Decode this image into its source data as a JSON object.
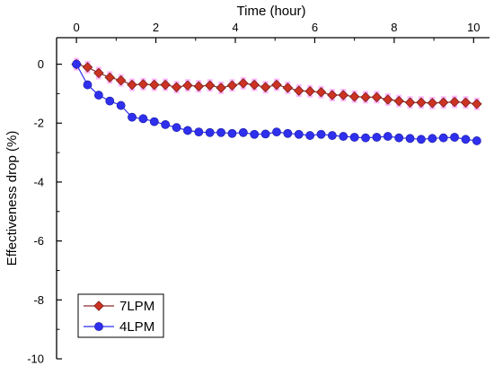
{
  "chart_data": {
    "type": "line",
    "title": "",
    "xlabel": "Time (hour)",
    "ylabel": "Effectiveness drop (%)",
    "xlim": [
      -0.5,
      10.4
    ],
    "ylim": [
      -10,
      0.9
    ],
    "xticks": [
      0,
      2,
      4,
      6,
      8,
      10
    ],
    "yticks": [
      0,
      -2,
      -4,
      -6,
      -8,
      -10
    ],
    "x_axis_position": "top",
    "grid": false,
    "legend_position": "bottom-left",
    "series": [
      {
        "name": "7LPM",
        "color": "#cc3322",
        "line_color": "#8b2a2a",
        "marker": "diamond",
        "error_color": "#ff66ff",
        "x": [
          0,
          0.28,
          0.56,
          0.84,
          1.12,
          1.4,
          1.68,
          1.96,
          2.24,
          2.52,
          2.8,
          3.08,
          3.36,
          3.64,
          3.92,
          4.2,
          4.48,
          4.76,
          5.04,
          5.32,
          5.6,
          5.88,
          6.16,
          6.44,
          6.72,
          7.0,
          7.28,
          7.56,
          7.84,
          8.12,
          8.4,
          8.68,
          8.96,
          9.24,
          9.52,
          9.8,
          10.08
        ],
        "y": [
          0,
          -0.1,
          -0.3,
          -0.45,
          -0.55,
          -0.7,
          -0.68,
          -0.7,
          -0.7,
          -0.78,
          -0.72,
          -0.75,
          -0.72,
          -0.8,
          -0.72,
          -0.65,
          -0.7,
          -0.78,
          -0.7,
          -0.8,
          -0.9,
          -0.92,
          -0.95,
          -1.05,
          -1.05,
          -1.1,
          -1.12,
          -1.12,
          -1.2,
          -1.25,
          -1.3,
          -1.3,
          -1.32,
          -1.3,
          -1.28,
          -1.3,
          -1.35
        ]
      },
      {
        "name": "4LPM",
        "color": "#2f2fee",
        "line_color": "#2f2fee",
        "marker": "circle",
        "x": [
          0,
          0.28,
          0.56,
          0.84,
          1.12,
          1.4,
          1.68,
          1.96,
          2.24,
          2.52,
          2.8,
          3.08,
          3.36,
          3.64,
          3.92,
          4.2,
          4.48,
          4.76,
          5.04,
          5.32,
          5.6,
          5.88,
          6.16,
          6.44,
          6.72,
          7.0,
          7.28,
          7.56,
          7.84,
          8.12,
          8.4,
          8.68,
          8.96,
          9.24,
          9.52,
          9.8,
          10.08
        ],
        "y": [
          0,
          -0.7,
          -1.05,
          -1.25,
          -1.4,
          -1.8,
          -1.85,
          -1.95,
          -2.05,
          -2.15,
          -2.25,
          -2.3,
          -2.32,
          -2.32,
          -2.35,
          -2.32,
          -2.38,
          -2.37,
          -2.3,
          -2.35,
          -2.38,
          -2.42,
          -2.38,
          -2.42,
          -2.45,
          -2.48,
          -2.5,
          -2.48,
          -2.45,
          -2.5,
          -2.52,
          -2.55,
          -2.52,
          -2.5,
          -2.48,
          -2.55,
          -2.6
        ]
      }
    ]
  }
}
